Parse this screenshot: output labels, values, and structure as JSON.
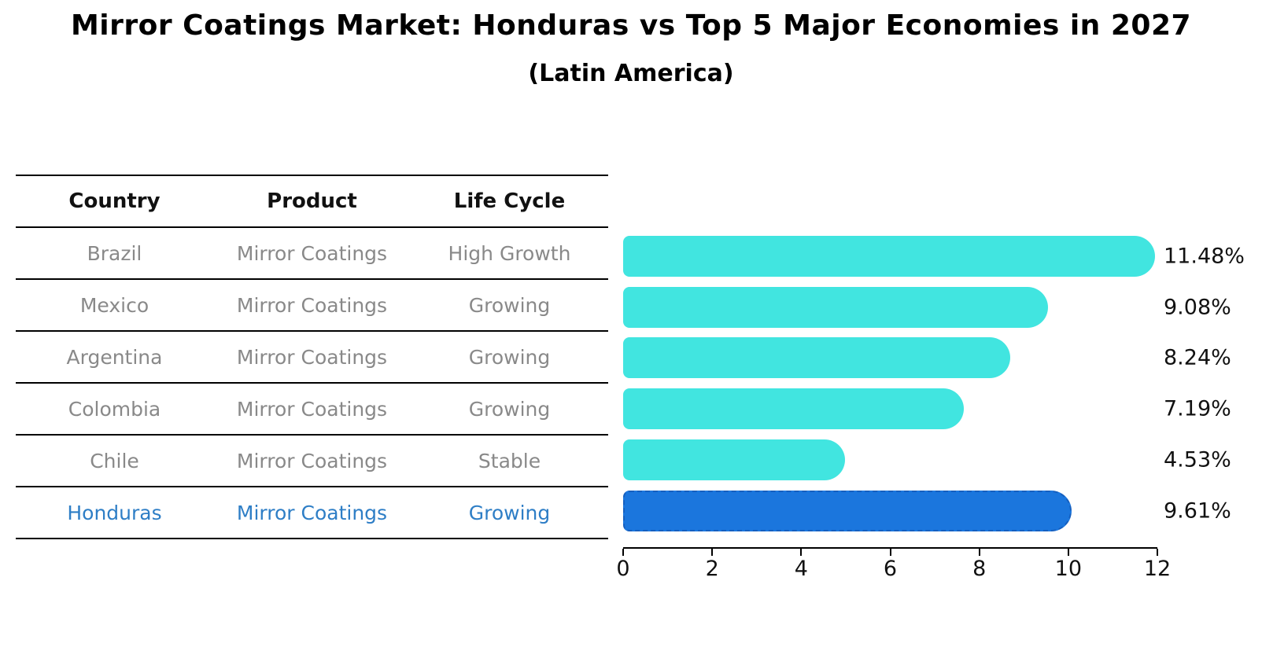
{
  "title": "Mirror Coatings Market: Honduras vs Top 5 Major Economies in 2027",
  "subtitle": "(Latin America)",
  "table": {
    "headers": [
      "Country",
      "Product",
      "Life Cycle"
    ],
    "rows": [
      {
        "country": "Brazil",
        "product": "Mirror Coatings",
        "life_cycle": "High Growth",
        "highlight": false
      },
      {
        "country": "Mexico",
        "product": "Mirror Coatings",
        "life_cycle": "Growing",
        "highlight": false
      },
      {
        "country": "Argentina",
        "product": "Mirror Coatings",
        "life_cycle": "Growing",
        "highlight": false
      },
      {
        "country": "Colombia",
        "product": "Mirror Coatings",
        "life_cycle": "Growing",
        "highlight": false
      },
      {
        "country": "Chile",
        "product": "Mirror Coatings",
        "life_cycle": "Stable",
        "highlight": false
      },
      {
        "country": "Honduras",
        "product": "Mirror Coatings",
        "life_cycle": "Growing",
        "highlight": true
      }
    ]
  },
  "chart_data": {
    "type": "bar",
    "orientation": "horizontal",
    "title": "Mirror Coatings Market: Honduras vs Top 5 Major Economies in 2027",
    "subtitle": "(Latin America)",
    "categories": [
      "Brazil",
      "Mexico",
      "Argentina",
      "Colombia",
      "Chile",
      "Honduras"
    ],
    "values": [
      11.48,
      9.08,
      8.24,
      7.19,
      4.53,
      9.61
    ],
    "value_labels": [
      "11.48%",
      "9.08%",
      "8.24%",
      "7.19%",
      "4.53%",
      "9.61%"
    ],
    "xlabel": "",
    "ylabel": "",
    "xlim": [
      0,
      12
    ],
    "x_ticks": [
      0,
      2,
      4,
      6,
      8,
      10,
      12
    ],
    "grid": false,
    "legend": false,
    "highlight_category": "Honduras",
    "bar_color": "#41e5e0",
    "highlight_bar_color": "#1b76dd",
    "highlight_border_color": "#155fbf",
    "highlight_text_color": "#2e7ec6"
  }
}
